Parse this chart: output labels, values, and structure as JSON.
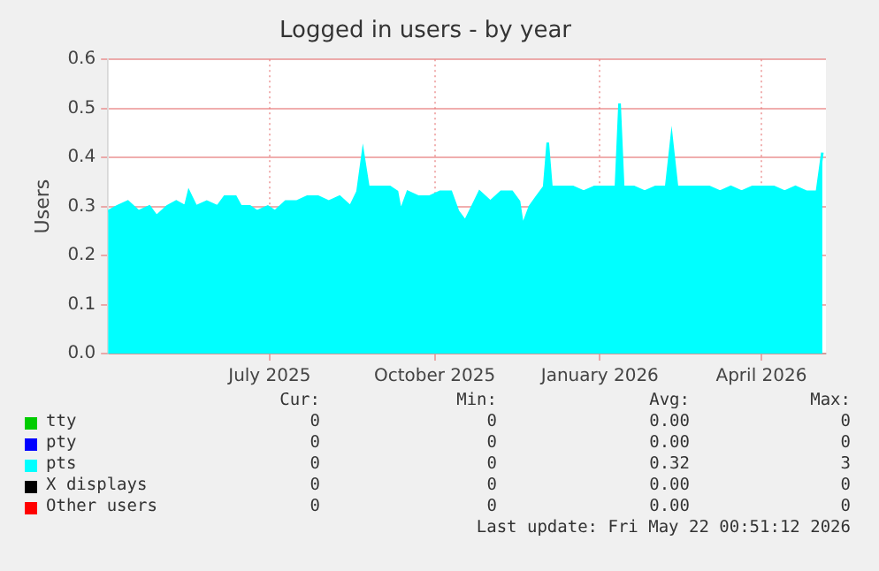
{
  "chart_data": {
    "type": "area",
    "title": "Logged in users - by year",
    "ylabel": "Users",
    "xlim": [
      "2025-04-17",
      "2026-05-22"
    ],
    "xticks": [
      {
        "value": "2025-07-16",
        "label": "July 2025"
      },
      {
        "value": "2025-10-16",
        "label": "October 2025"
      },
      {
        "value": "2026-01-16",
        "label": "January 2026"
      },
      {
        "value": "2026-04-16",
        "label": "April 2026"
      }
    ],
    "ylim": [
      0,
      0.6
    ],
    "yticks": [
      {
        "value": 0,
        "label": "0.0"
      },
      0.1,
      0.2,
      0.3,
      0.4,
      0.5,
      0.6
    ],
    "grid": true,
    "legend": "bottom",
    "series": [
      {
        "name": "tty",
        "color": "#00cc00"
      },
      {
        "name": "pty",
        "color": "#0000ff"
      },
      {
        "name": "pts",
        "color": "#00ffff",
        "x": [
          "2025-04-17",
          "2025-04-22",
          "2025-04-28",
          "2025-05-04",
          "2025-05-10",
          "2025-05-14",
          "2025-05-20",
          "2025-05-25",
          "2025-05-30",
          "2025-06-01",
          "2025-06-05",
          "2025-06-11",
          "2025-06-17",
          "2025-06-21",
          "2025-06-27",
          "2025-06-30",
          "2025-07-05",
          "2025-07-09",
          "2025-07-15",
          "2025-07-19",
          "2025-07-25",
          "2025-07-31",
          "2025-08-06",
          "2025-08-12",
          "2025-08-18",
          "2025-08-24",
          "2025-08-30",
          "2025-09-03",
          "2025-09-06",
          "2025-09-09",
          "2025-09-15",
          "2025-09-21",
          "2025-09-25",
          "2025-09-27",
          "2025-10-01",
          "2025-10-07",
          "2025-10-13",
          "2025-10-19",
          "2025-10-25",
          "2025-10-29",
          "2025-11-02",
          "2025-11-06",
          "2025-11-10",
          "2025-11-16",
          "2025-11-22",
          "2025-11-28",
          "2025-12-02",
          "2025-12-04",
          "2025-12-08",
          "2025-12-12",
          "2025-12-16",
          "2025-12-18",
          "2025-12-20",
          "2025-12-26",
          "2026-01-01",
          "2026-01-07",
          "2026-01-13",
          "2026-01-19",
          "2026-01-25",
          "2026-01-27",
          "2026-01-29",
          "2026-02-04",
          "2026-02-10",
          "2026-02-16",
          "2026-02-22",
          "2026-02-25",
          "2026-02-28",
          "2026-03-06",
          "2026-03-12",
          "2026-03-18",
          "2026-03-24",
          "2026-03-30",
          "2026-04-05",
          "2026-04-11",
          "2026-04-17",
          "2026-04-23",
          "2026-04-29",
          "2026-05-05",
          "2026-05-11",
          "2026-05-17",
          "2026-05-20"
        ],
        "values": [
          0.29,
          0.3,
          0.31,
          0.29,
          0.3,
          0.28,
          0.3,
          0.31,
          0.3,
          0.33,
          0.3,
          0.31,
          0.3,
          0.32,
          0.32,
          0.3,
          0.3,
          0.29,
          0.3,
          0.29,
          0.31,
          0.31,
          0.32,
          0.32,
          0.31,
          0.32,
          0.3,
          0.33,
          0.41,
          0.34,
          0.34,
          0.34,
          0.33,
          0.29,
          0.33,
          0.32,
          0.32,
          0.33,
          0.33,
          0.29,
          0.27,
          0.3,
          0.33,
          0.31,
          0.33,
          0.33,
          0.31,
          0.26,
          0.3,
          0.32,
          0.34,
          0.43,
          0.34,
          0.34,
          0.34,
          0.33,
          0.34,
          0.34,
          0.34,
          0.51,
          0.34,
          0.34,
          0.33,
          0.34,
          0.34,
          0.44,
          0.34,
          0.34,
          0.34,
          0.34,
          0.33,
          0.34,
          0.33,
          0.34,
          0.34,
          0.34,
          0.33,
          0.34,
          0.33,
          0.33,
          0.41
        ]
      },
      {
        "name": "X displays",
        "color": "#000000"
      },
      {
        "name": "Other users",
        "color": "#ff0000"
      }
    ],
    "annotations": [
      "Cur:",
      "Min:",
      "Avg:",
      "Max:",
      "0",
      "0",
      "0.00",
      "0",
      "0",
      "0",
      "0.00",
      "0",
      "0",
      "0",
      "0.32",
      "3",
      "0",
      "0",
      "0.00",
      "0",
      "0",
      "0",
      "0.00",
      "0",
      "Last update: Fri May 22 00:51:12 2026"
    ]
  }
}
